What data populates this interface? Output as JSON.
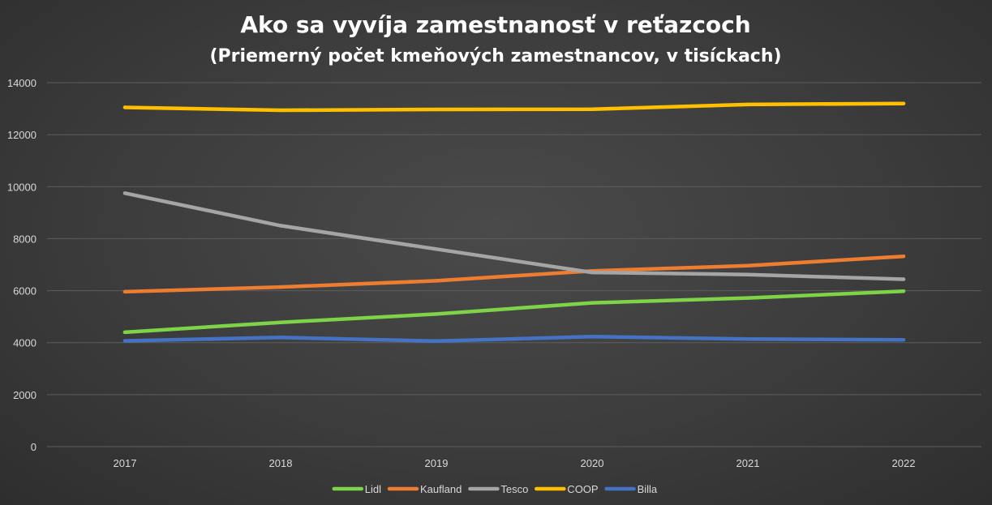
{
  "chart_data": {
    "type": "line",
    "title": "Ako sa vyvíja zamestnanosť v reťazcoch",
    "subtitle": "(Priemerný počet kmeňových zamestnancov, v tisíckach)",
    "xlabel": "",
    "ylabel": "",
    "categories": [
      "2017",
      "2018",
      "2019",
      "2020",
      "2021",
      "2022"
    ],
    "ylim": [
      0,
      14000
    ],
    "yticks": [
      "0",
      "2000",
      "4000",
      "6000",
      "8000",
      "10000",
      "12000",
      "14000"
    ],
    "grid": true,
    "legend_position": "bottom",
    "series": [
      {
        "name": "Lidl",
        "color": "#7ed348",
        "values": [
          4400,
          4780,
          5100,
          5530,
          5720,
          5980
        ]
      },
      {
        "name": "Kaufland",
        "color": "#ed7d31",
        "values": [
          5960,
          6140,
          6380,
          6760,
          6960,
          7320
        ]
      },
      {
        "name": "Tesco",
        "color": "#a5a5a5",
        "values": [
          9750,
          8500,
          7600,
          6700,
          6620,
          6440
        ]
      },
      {
        "name": "COOP",
        "color": "#ffc000",
        "values": [
          13050,
          12940,
          12970,
          12980,
          13160,
          13200
        ]
      },
      {
        "name": "Billa",
        "color": "#4472c4",
        "values": [
          4070,
          4200,
          4060,
          4230,
          4140,
          4110
        ]
      }
    ]
  }
}
